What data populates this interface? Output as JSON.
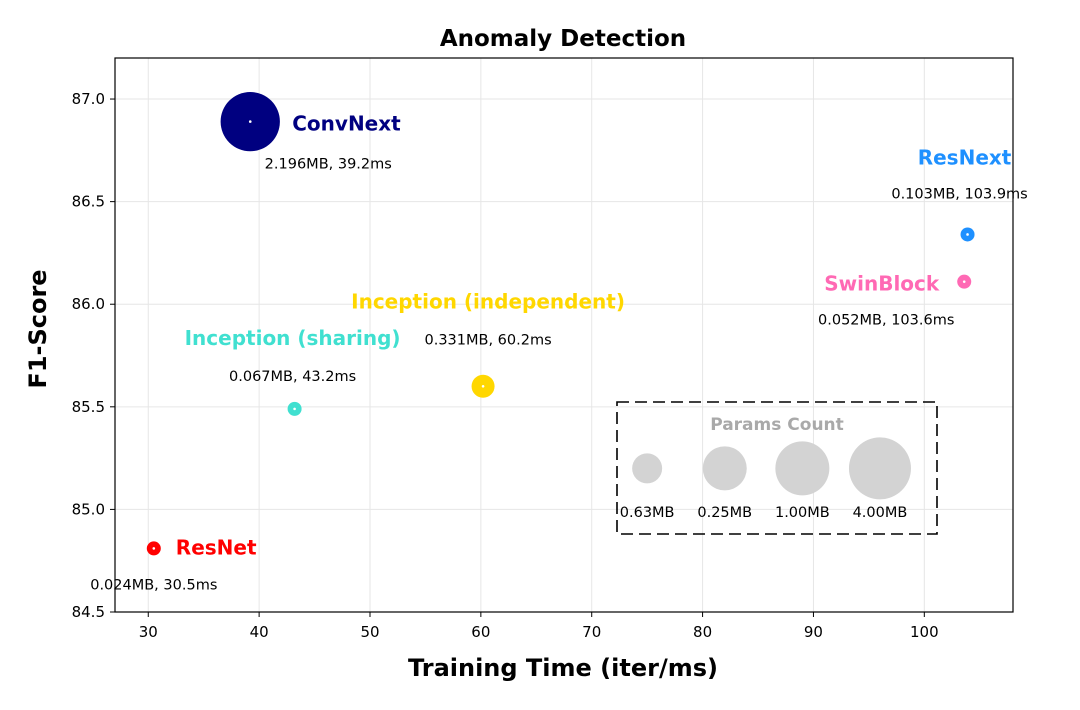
{
  "chart_data": {
    "type": "scatter",
    "title": "Anomaly Detection",
    "xlabel": "Training Time (iter/ms)",
    "ylabel": "F1-Score",
    "xlim": [
      27,
      108
    ],
    "ylim": [
      84.5,
      87.2
    ],
    "xticks": [
      30,
      40,
      50,
      60,
      70,
      80,
      90,
      100
    ],
    "yticks": [
      84.5,
      85.0,
      85.5,
      86.0,
      86.5,
      87.0
    ],
    "xtick_labels": [
      "30",
      "40",
      "50",
      "60",
      "70",
      "80",
      "90",
      "100"
    ],
    "ytick_labels": [
      "84.5",
      "85.0",
      "85.5",
      "86.0",
      "86.5",
      "87.0"
    ],
    "grid": true,
    "points": [
      {
        "name": "ResNet",
        "x": 30.5,
        "y": 84.81,
        "params_mb": 0.024,
        "color": "#ff0000",
        "info": "0.024MB, 30.5ms"
      },
      {
        "name": "ConvNext",
        "x": 39.2,
        "y": 86.89,
        "params_mb": 2.196,
        "color": "#000080",
        "info": "2.196MB, 39.2ms"
      },
      {
        "name": "Inception (sharing)",
        "x": 43.2,
        "y": 85.49,
        "params_mb": 0.067,
        "color": "#40e0d0",
        "info": "0.067MB, 43.2ms"
      },
      {
        "name": "Inception (independent)",
        "x": 60.2,
        "y": 85.6,
        "params_mb": 0.331,
        "color": "#ffd700",
        "info": "0.331MB, 60.2ms"
      },
      {
        "name": "ResNext",
        "x": 103.9,
        "y": 86.34,
        "params_mb": 0.103,
        "color": "#1e90ff",
        "info": "0.103MB, 103.9ms"
      },
      {
        "name": "SwinBlock",
        "x": 103.6,
        "y": 86.11,
        "params_mb": 0.052,
        "color": "#ff69b4",
        "info": "0.052MB, 103.6ms"
      }
    ],
    "size_legend": {
      "title": "Params Count",
      "placement": "bottom-right",
      "items": [
        {
          "label": "0.63MB",
          "x": 75,
          "y": 85.2,
          "size_rank": 1
        },
        {
          "label": "0.25MB",
          "x": 82,
          "y": 85.2,
          "size_rank": 2
        },
        {
          "label": "1.00MB",
          "x": 89,
          "y": 85.2,
          "size_rank": 3
        },
        {
          "label": "4.00MB",
          "x": 96,
          "y": 85.2,
          "size_rank": 4
        }
      ],
      "color": "#d3d3d3"
    }
  }
}
